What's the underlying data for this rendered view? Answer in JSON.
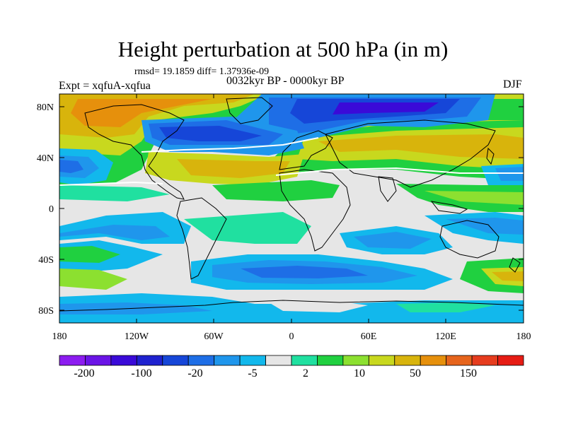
{
  "title": "Height perturbation at 500 hPa (in m)",
  "stats": "rmsd= 19.1859 diff= 1.37936e-09",
  "experiment": "Expt = xqfuA-xqfua",
  "period": "0032kyr BP - 0000kyr BP",
  "season": "DJF",
  "map": {
    "lat_labels": [
      "80N",
      "40N",
      "0",
      "40S",
      "80S"
    ],
    "lon_labels": [
      "180",
      "120W",
      "60W",
      "0",
      "60E",
      "120E",
      "180"
    ]
  },
  "colorbar": {
    "labels": [
      "-200",
      "-100",
      "-20",
      "-5",
      "2",
      "10",
      "50",
      "150"
    ],
    "colors": [
      "#8c1cf0",
      "#6a14e6",
      "#3a0ad8",
      "#1f22cf",
      "#1646d8",
      "#1e6ee6",
      "#1f96ec",
      "#12b8ec",
      "#e6e6e6",
      "#20e0a0",
      "#20d040",
      "#8ce030",
      "#c8d81e",
      "#d8b40c",
      "#e6900c",
      "#e6641c",
      "#e63c1e",
      "#e61c14"
    ]
  }
}
